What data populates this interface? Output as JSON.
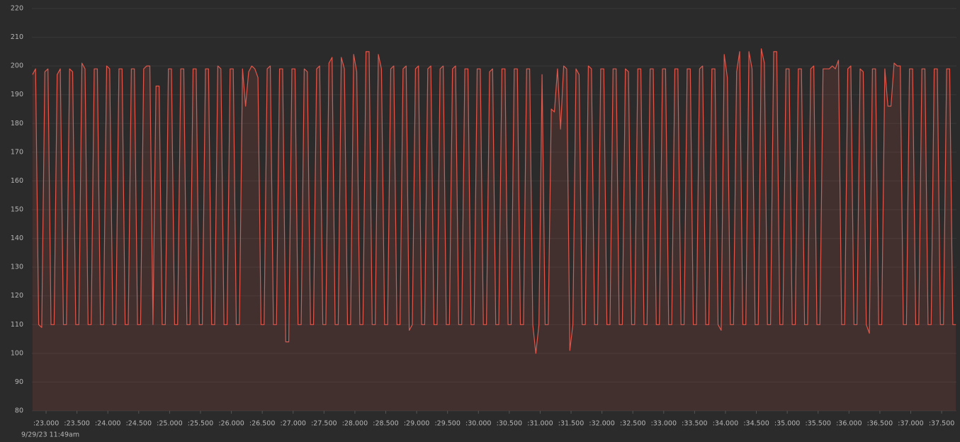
{
  "chart_data": {
    "type": "line",
    "color": "#e0564a",
    "grid": true,
    "footnote": "9/29/23 11:49am",
    "xlim": [
      22.77,
      37.74
    ],
    "ylim": [
      80,
      220
    ],
    "yticks": [
      80,
      90,
      100,
      110,
      120,
      130,
      140,
      150,
      160,
      170,
      180,
      190,
      200,
      210,
      220
    ],
    "xticks": [
      {
        "value": 23.0,
        "label": ":23.000"
      },
      {
        "value": 23.5,
        "label": ":23.500"
      },
      {
        "value": 24.0,
        "label": ":24.000"
      },
      {
        "value": 24.5,
        "label": ":24.500"
      },
      {
        "value": 25.0,
        "label": ":25.000"
      },
      {
        "value": 25.5,
        "label": ":25.500"
      },
      {
        "value": 26.0,
        "label": ":26.000"
      },
      {
        "value": 26.5,
        "label": ":26.500"
      },
      {
        "value": 27.0,
        "label": ":27.000"
      },
      {
        "value": 27.5,
        "label": ":27.500"
      },
      {
        "value": 28.0,
        "label": ":28.000"
      },
      {
        "value": 28.5,
        "label": ":28.500"
      },
      {
        "value": 29.0,
        "label": ":29.000"
      },
      {
        "value": 29.5,
        "label": ":29.500"
      },
      {
        "value": 30.0,
        "label": ":30.000"
      },
      {
        "value": 30.5,
        "label": ":30.500"
      },
      {
        "value": 31.0,
        "label": ":31.000"
      },
      {
        "value": 31.5,
        "label": ":31.500"
      },
      {
        "value": 32.0,
        "label": ":32.000"
      },
      {
        "value": 32.5,
        "label": ":32.500"
      },
      {
        "value": 33.0,
        "label": ":33.000"
      },
      {
        "value": 33.5,
        "label": ":33.500"
      },
      {
        "value": 34.0,
        "label": ":34.000"
      },
      {
        "value": 34.5,
        "label": ":34.500"
      },
      {
        "value": 35.0,
        "label": ":35.000"
      },
      {
        "value": 35.5,
        "label": ":35.500"
      },
      {
        "value": 36.0,
        "label": ":36.000"
      },
      {
        "value": 36.5,
        "label": ":36.500"
      },
      {
        "value": 37.0,
        "label": ":37.000"
      },
      {
        "value": 37.5,
        "label": ":37.500"
      }
    ],
    "x": [
      22.78,
      22.83,
      22.88,
      22.93,
      22.98,
      23.03,
      23.08,
      23.13,
      23.18,
      23.23,
      23.28,
      23.33,
      23.38,
      23.43,
      23.48,
      23.53,
      23.58,
      23.63,
      23.68,
      23.73,
      23.78,
      23.83,
      23.88,
      23.93,
      23.98,
      24.03,
      24.08,
      24.13,
      24.18,
      24.23,
      24.28,
      24.33,
      24.38,
      24.43,
      24.48,
      24.53,
      24.58,
      24.63,
      24.68,
      24.73,
      24.78,
      24.83,
      24.88,
      24.93,
      24.98,
      25.03,
      25.08,
      25.13,
      25.18,
      25.23,
      25.28,
      25.33,
      25.38,
      25.43,
      25.48,
      25.53,
      25.58,
      25.63,
      25.68,
      25.73,
      25.78,
      25.83,
      25.88,
      25.93,
      25.98,
      26.03,
      26.08,
      26.13,
      26.18,
      26.23,
      26.28,
      26.33,
      26.38,
      26.43,
      26.48,
      26.53,
      26.58,
      26.63,
      26.68,
      26.73,
      26.78,
      26.83,
      26.88,
      26.93,
      26.98,
      27.03,
      27.08,
      27.13,
      27.18,
      27.23,
      27.28,
      27.33,
      27.38,
      27.43,
      27.48,
      27.53,
      27.58,
      27.63,
      27.68,
      27.73,
      27.78,
      27.83,
      27.88,
      27.93,
      27.98,
      28.03,
      28.08,
      28.13,
      28.18,
      28.23,
      28.28,
      28.33,
      28.38,
      28.43,
      28.48,
      28.53,
      28.58,
      28.63,
      28.68,
      28.73,
      28.78,
      28.83,
      28.88,
      28.93,
      28.98,
      29.03,
      29.08,
      29.13,
      29.18,
      29.23,
      29.28,
      29.33,
      29.38,
      29.43,
      29.48,
      29.53,
      29.58,
      29.63,
      29.68,
      29.73,
      29.78,
      29.83,
      29.88,
      29.93,
      29.98,
      30.03,
      30.08,
      30.13,
      30.18,
      30.23,
      30.28,
      30.33,
      30.38,
      30.43,
      30.48,
      30.53,
      30.58,
      30.63,
      30.68,
      30.73,
      30.78,
      30.83,
      30.88,
      30.93,
      30.98,
      31.03,
      31.08,
      31.13,
      31.18,
      31.23,
      31.28,
      31.33,
      31.38,
      31.43,
      31.48,
      31.53,
      31.58,
      31.63,
      31.68,
      31.73,
      31.78,
      31.83,
      31.88,
      31.93,
      31.98,
      32.03,
      32.08,
      32.13,
      32.18,
      32.23,
      32.28,
      32.33,
      32.38,
      32.43,
      32.48,
      32.53,
      32.58,
      32.63,
      32.68,
      32.73,
      32.78,
      32.83,
      32.88,
      32.93,
      32.98,
      33.03,
      33.08,
      33.13,
      33.18,
      33.23,
      33.28,
      33.33,
      33.38,
      33.43,
      33.48,
      33.53,
      33.58,
      33.63,
      33.68,
      33.73,
      33.78,
      33.83,
      33.88,
      33.93,
      33.98,
      34.03,
      34.08,
      34.13,
      34.18,
      34.23,
      34.28,
      34.33,
      34.38,
      34.43,
      34.48,
      34.53,
      34.58,
      34.63,
      34.68,
      34.73,
      34.78,
      34.83,
      34.88,
      34.93,
      34.98,
      35.03,
      35.08,
      35.13,
      35.18,
      35.23,
      35.28,
      35.33,
      35.38,
      35.43,
      35.48,
      35.53,
      35.58,
      35.63,
      35.68,
      35.73,
      35.78,
      35.83,
      35.88,
      35.93,
      35.98,
      36.03,
      36.08,
      36.13,
      36.18,
      36.23,
      36.28,
      36.33,
      36.38,
      36.43,
      36.48,
      36.53,
      36.58,
      36.63,
      36.68,
      36.73,
      36.78,
      36.83,
      36.88,
      36.93,
      36.98,
      37.03,
      37.08,
      37.13,
      37.18,
      37.23,
      37.28,
      37.33,
      37.38,
      37.43,
      37.48,
      37.53,
      37.58,
      37.63,
      37.68,
      37.73
    ],
    "values": [
      197,
      199,
      110,
      109,
      198,
      199,
      110,
      110,
      197,
      199,
      110,
      110,
      199,
      198,
      110,
      110,
      201,
      199,
      110,
      110,
      199,
      199,
      110,
      110,
      200,
      199,
      110,
      110,
      199,
      199,
      110,
      110,
      199,
      199,
      110,
      110,
      199,
      200,
      200,
      110,
      193,
      193,
      110,
      110,
      199,
      199,
      110,
      110,
      199,
      199,
      110,
      110,
      199,
      199,
      110,
      110,
      199,
      199,
      110,
      110,
      200,
      199,
      110,
      110,
      199,
      199,
      110,
      110,
      199,
      186,
      198,
      200,
      199,
      196,
      110,
      110,
      199,
      200,
      110,
      110,
      199,
      199,
      104,
      104,
      199,
      199,
      110,
      110,
      199,
      198,
      110,
      110,
      199,
      200,
      110,
      110,
      201,
      203,
      110,
      110,
      203,
      199,
      110,
      110,
      204,
      198,
      110,
      110,
      205,
      205,
      110,
      110,
      204,
      199,
      110,
      110,
      199,
      200,
      110,
      110,
      199,
      200,
      108,
      110,
      199,
      200,
      110,
      110,
      199,
      200,
      110,
      110,
      199,
      200,
      110,
      110,
      199,
      200,
      110,
      110,
      199,
      199,
      110,
      110,
      199,
      199,
      110,
      110,
      198,
      199,
      110,
      110,
      199,
      199,
      110,
      110,
      199,
      199,
      110,
      110,
      199,
      199,
      110,
      100,
      110,
      197,
      110,
      110,
      185,
      184,
      199,
      178,
      200,
      199,
      101,
      110,
      199,
      197,
      110,
      110,
      200,
      199,
      110,
      110,
      199,
      199,
      110,
      110,
      199,
      199,
      110,
      110,
      199,
      198,
      110,
      110,
      199,
      199,
      110,
      110,
      199,
      199,
      110,
      110,
      199,
      199,
      110,
      110,
      199,
      199,
      110,
      110,
      199,
      199,
      110,
      110,
      199,
      200,
      110,
      110,
      199,
      199,
      110,
      108,
      204,
      196,
      110,
      110,
      198,
      205,
      110,
      110,
      205,
      199,
      110,
      110,
      206,
      201,
      110,
      110,
      205,
      205,
      110,
      110,
      199,
      199,
      110,
      110,
      199,
      199,
      110,
      110,
      199,
      200,
      110,
      110,
      199,
      199,
      199,
      200,
      199,
      202,
      110,
      110,
      199,
      200,
      110,
      110,
      199,
      198,
      110,
      107,
      199,
      199,
      110,
      110,
      199,
      186,
      186,
      201,
      200,
      200,
      110,
      110,
      199,
      199,
      110,
      110,
      199,
      199,
      110,
      110,
      199,
      199,
      110,
      110,
      199,
      199,
      110,
      110
    ]
  }
}
